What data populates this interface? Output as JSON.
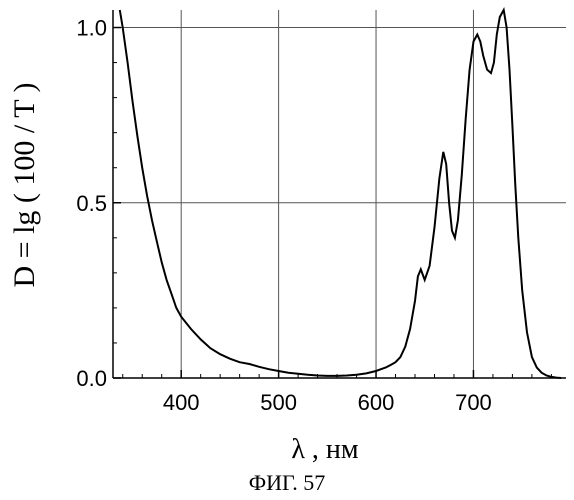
{
  "chart_data": {
    "type": "line",
    "xlabel": "λ , нм",
    "ylabel": "D = lg ( 100 / T )",
    "caption": "ФИГ. 57",
    "xlim": [
      330,
      795
    ],
    "ylim": [
      0,
      1.05
    ],
    "x_ticks": [
      400,
      500,
      600,
      700
    ],
    "y_ticks": [
      0.0,
      0.5,
      1.0
    ],
    "x_tick_labels": [
      "400",
      "500",
      "600",
      "700"
    ],
    "y_tick_labels": [
      "0.0",
      "0.5",
      "1.0"
    ],
    "grid": true,
    "series": [
      {
        "x": [
          337,
          340,
          345,
          350,
          355,
          360,
          365,
          370,
          375,
          380,
          385,
          390,
          395,
          400,
          410,
          420,
          430,
          440,
          450,
          460,
          470,
          480,
          490,
          500,
          510,
          520,
          530,
          540,
          550,
          560,
          570,
          580,
          590,
          600,
          605,
          610,
          615,
          620,
          625,
          630,
          635,
          640,
          643,
          646,
          650,
          655,
          660,
          665,
          669,
          672,
          675,
          678,
          681,
          684,
          688,
          692,
          696,
          700,
          704,
          707,
          710,
          714,
          718,
          721,
          724,
          727,
          731,
          734,
          737,
          740,
          743,
          746,
          750,
          755,
          760,
          765,
          770,
          775,
          780,
          785,
          790
        ],
        "y": [
          1.05,
          1.0,
          0.9,
          0.79,
          0.69,
          0.6,
          0.52,
          0.45,
          0.39,
          0.33,
          0.28,
          0.24,
          0.2,
          0.175,
          0.14,
          0.11,
          0.085,
          0.068,
          0.055,
          0.045,
          0.04,
          0.032,
          0.025,
          0.02,
          0.015,
          0.012,
          0.009,
          0.007,
          0.006,
          0.006,
          0.007,
          0.009,
          0.013,
          0.02,
          0.025,
          0.03,
          0.037,
          0.045,
          0.06,
          0.09,
          0.14,
          0.22,
          0.29,
          0.31,
          0.28,
          0.32,
          0.43,
          0.57,
          0.645,
          0.61,
          0.5,
          0.42,
          0.4,
          0.45,
          0.58,
          0.74,
          0.88,
          0.96,
          0.98,
          0.96,
          0.92,
          0.88,
          0.87,
          0.9,
          0.98,
          1.03,
          1.05,
          1.0,
          0.88,
          0.72,
          0.55,
          0.4,
          0.25,
          0.13,
          0.06,
          0.03,
          0.015,
          0.007,
          0.003,
          0.001,
          0.0
        ]
      }
    ]
  }
}
